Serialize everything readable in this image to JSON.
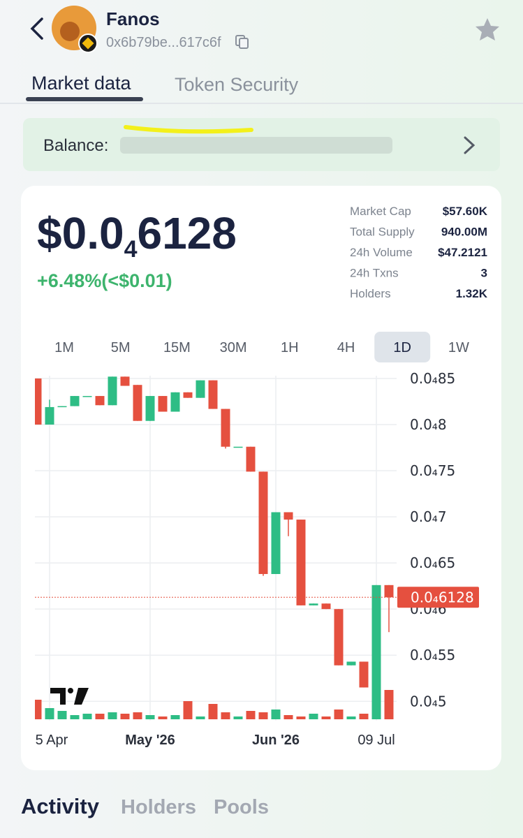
{
  "header": {
    "name": "Fanos",
    "address": "0x6b79be...617c6f"
  },
  "tabs": [
    "Market data",
    "Token Security"
  ],
  "balance_label": "Balance:",
  "price": {
    "prefix": "$0.0",
    "subscript": "4",
    "digits": "6128",
    "change": "+6.48%(<$0.01)"
  },
  "stats": [
    {
      "label": "Market Cap",
      "value": "$57.60K"
    },
    {
      "label": "Total Supply",
      "value": "940.00M"
    },
    {
      "label": "24h Volume",
      "value": "$47.2121"
    },
    {
      "label": "24h Txns",
      "value": "3"
    },
    {
      "label": "Holders",
      "value": "1.32K"
    }
  ],
  "timeframes": [
    "1M",
    "5M",
    "15M",
    "30M",
    "1H",
    "4H",
    "1D",
    "1W"
  ],
  "selected_timeframe": "1D",
  "bottom_tabs": [
    "Activity",
    "Holders",
    "Pools"
  ],
  "chart_data": {
    "type": "candlestick",
    "categories": [
      null,
      "5 Apr",
      null,
      null,
      null,
      null,
      null,
      null,
      null,
      "May '26",
      null,
      null,
      null,
      null,
      null,
      null,
      null,
      null,
      null,
      "Jun '26",
      null,
      null,
      null,
      null,
      null,
      null,
      null,
      "09 Jul",
      null
    ],
    "open": [
      8.5e-05,
      8e-05,
      8.19e-05,
      8.2e-05,
      8.31e-05,
      8.31e-05,
      8.21e-05,
      8.52e-05,
      8.43e-05,
      8.04e-05,
      8.31e-05,
      8.14e-05,
      8.35e-05,
      8.29e-05,
      8.48e-05,
      8.17e-05,
      7.76e-05,
      7.76e-05,
      7.49e-05,
      6.38e-05,
      7.05e-05,
      6.97e-05,
      6.04e-05,
      6.06e-05,
      6e-05,
      5.39e-05,
      5.43e-05,
      5.15e-05,
      6.26e-05
    ],
    "high": [
      8.5e-05,
      8.27e-05,
      8.2e-05,
      8.31e-05,
      8.31e-05,
      8.31e-05,
      8.52e-05,
      8.52e-05,
      8.43e-05,
      8.31e-05,
      8.31e-05,
      8.35e-05,
      8.35e-05,
      8.48e-05,
      8.48e-05,
      8.17e-05,
      7.76e-05,
      7.76e-05,
      7.49e-05,
      7.05e-05,
      7.05e-05,
      6.97e-05,
      6.06e-05,
      6.06e-05,
      6e-05,
      5.43e-05,
      5.43e-05,
      6.26e-05,
      6.26e-05
    ],
    "low": [
      8e-05,
      8e-05,
      8.19e-05,
      8.2e-05,
      8.31e-05,
      8.21e-05,
      8.21e-05,
      8.42e-05,
      8.04e-05,
      8.04e-05,
      8.14e-05,
      8.14e-05,
      8.29e-05,
      8.29e-05,
      8.17e-05,
      7.74e-05,
      7.76e-05,
      7.49e-05,
      6.36e-05,
      6.38e-05,
      6.79e-05,
      6.04e-05,
      6.04e-05,
      6e-05,
      5.39e-05,
      5.39e-05,
      5.15e-05,
      5.15e-05,
      5.75e-05
    ],
    "close": [
      8e-05,
      8.19e-05,
      8.2e-05,
      8.31e-05,
      8.31e-05,
      8.21e-05,
      8.52e-05,
      8.42e-05,
      8.04e-05,
      8.31e-05,
      8.14e-05,
      8.35e-05,
      8.29e-05,
      8.48e-05,
      8.17e-05,
      7.76e-05,
      7.76e-05,
      7.49e-05,
      6.38e-05,
      7.05e-05,
      6.97e-05,
      6.04e-05,
      6.06e-05,
      6e-05,
      5.39e-05,
      5.43e-05,
      5.15e-05,
      6.26e-05,
      6.128e-05
    ],
    "volume": [
      28,
      16,
      12,
      6,
      8,
      8,
      10,
      8,
      10,
      6,
      4,
      6,
      26,
      4,
      22,
      10,
      4,
      12,
      10,
      14,
      6,
      4,
      8,
      4,
      14,
      4,
      8,
      48,
      42
    ],
    "up_color": "#2ebd85",
    "down_color": "#e5503f",
    "ylim": [
      4.79e-05,
      8.53e-05
    ],
    "yticks": [
      {
        "value": 8.5e-05,
        "label": "0.0₄85"
      },
      {
        "value": 8e-05,
        "label": "0.0₄8"
      },
      {
        "value": 7.5e-05,
        "label": "0.0₄75"
      },
      {
        "value": 7e-05,
        "label": "0.0₄7"
      },
      {
        "value": 6.5e-05,
        "label": "0.0₄65"
      },
      {
        "value": 6e-05,
        "label": "0.0₄6"
      },
      {
        "value": 5.5e-05,
        "label": "0.0₄55"
      },
      {
        "value": 5e-05,
        "label": "0.0₄5"
      }
    ],
    "grid": true,
    "last_price": 6.128e-05,
    "last_price_label": "0.0₄6128"
  }
}
